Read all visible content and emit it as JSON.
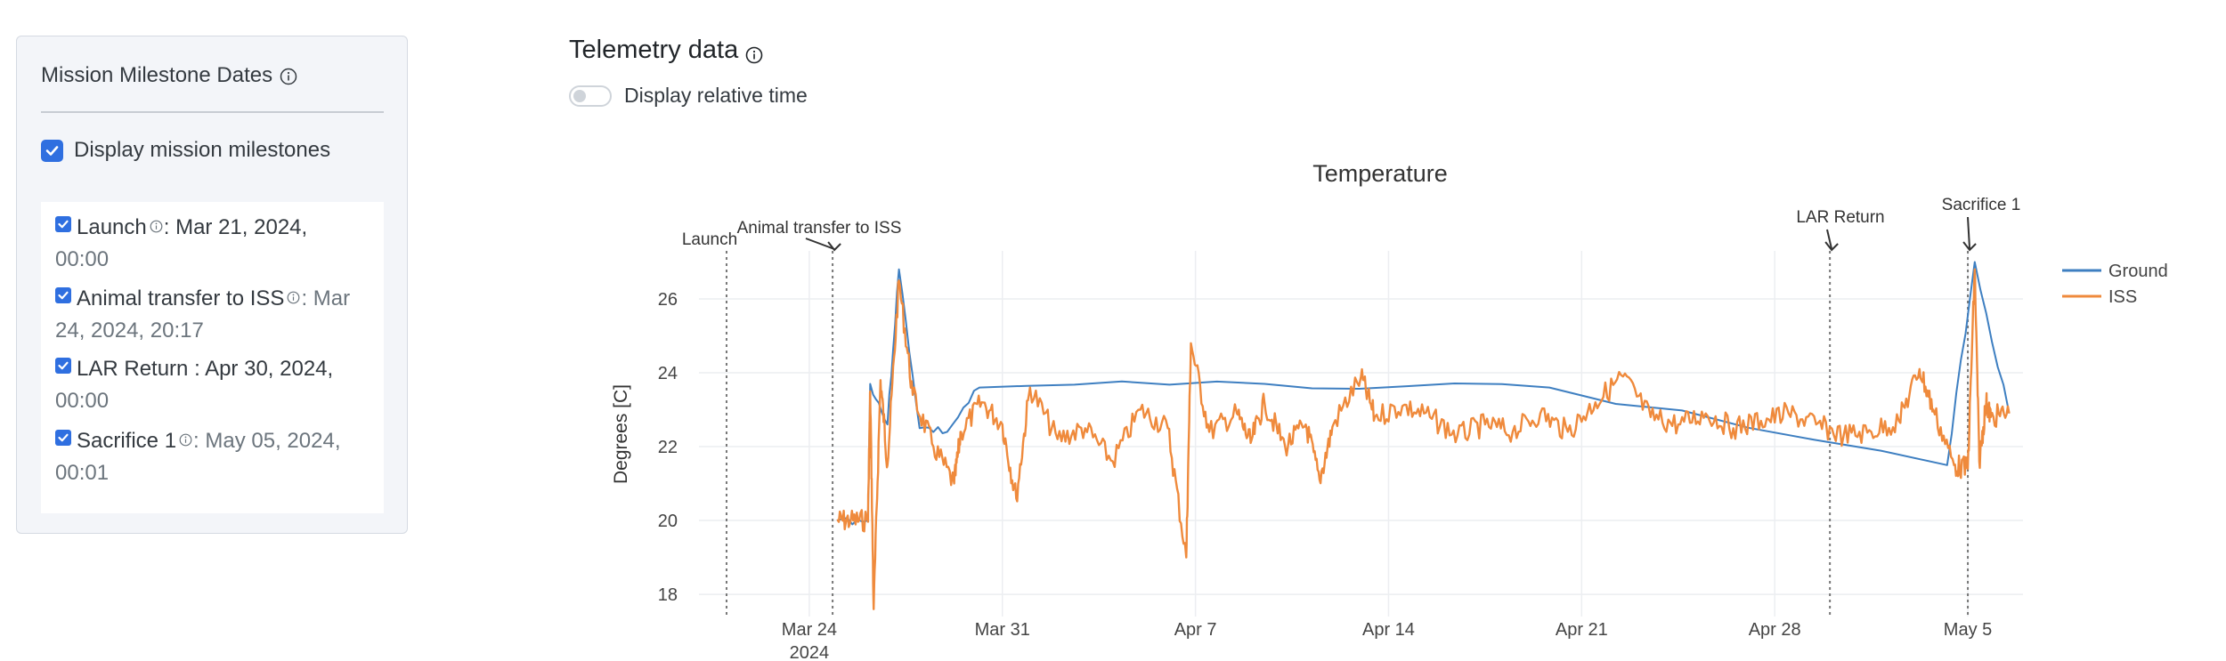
{
  "milestones_panel": {
    "title": "Mission Milestone Dates",
    "display_toggle_label": "Display mission milestones",
    "display_toggle_checked": true,
    "items": [
      {
        "name": "Launch",
        "has_info": true,
        "date_line1": ": Mar 21, 2024,",
        "date_line2": "00:00",
        "checked": true
      },
      {
        "name": "Animal transfer to ISS",
        "has_info": true,
        "date_line1": ": Mar",
        "date_line2": "24, 2024, 20:17",
        "checked": true
      },
      {
        "name": "LAR Return",
        "has_info": false,
        "date_line1": ": Apr 30, 2024,",
        "date_line2": "00:00",
        "checked": true
      },
      {
        "name": "Sacrifice 1",
        "has_info": true,
        "date_line1": ": May 05, 2024,",
        "date_line2": "00:01",
        "checked": true
      }
    ]
  },
  "telemetry": {
    "title": "Telemetry data",
    "relative_time_label": "Display relative time",
    "relative_time_on": false
  },
  "colors": {
    "ground": "#3e7fc1",
    "iss": "#ef8a3c",
    "accent": "#2f6fe0"
  },
  "chart_data": {
    "type": "line",
    "title": "Temperature",
    "xlabel": "",
    "ylabel": "Degrees [C]",
    "xlim": [
      "2024-03-20",
      "2024-05-07"
    ],
    "ylim": [
      17.4,
      27.3
    ],
    "yticks": [
      18,
      20,
      22,
      24,
      26
    ],
    "xticks": [
      {
        "date": "2024-03-24",
        "label": "Mar 24",
        "sublabel": "2024"
      },
      {
        "date": "2024-03-31",
        "label": "Mar 31",
        "sublabel": ""
      },
      {
        "date": "2024-04-07",
        "label": "Apr 7",
        "sublabel": ""
      },
      {
        "date": "2024-04-14",
        "label": "Apr 14",
        "sublabel": ""
      },
      {
        "date": "2024-04-21",
        "label": "Apr 21",
        "sublabel": ""
      },
      {
        "date": "2024-04-28",
        "label": "Apr 28",
        "sublabel": ""
      },
      {
        "date": "2024-05-05",
        "label": "May 5",
        "sublabel": ""
      }
    ],
    "grid": true,
    "legend_position": "top-right",
    "milestone_lines": [
      {
        "label": "Launch",
        "date": "2024-03-21 00:00",
        "arrow": false
      },
      {
        "label": "Animal transfer to ISS",
        "date": "2024-03-24 20:17",
        "arrow": true
      },
      {
        "label": "LAR Return",
        "date": "2024-04-30 00:00",
        "arrow": true
      },
      {
        "label": "Sacrifice 1",
        "date": "2024-05-05 00:01",
        "arrow": true
      }
    ],
    "series": [
      {
        "name": "Ground",
        "color_key": "ground",
        "points": [
          [
            "2024-03-25 00:00",
            20.0
          ],
          [
            "2024-03-26 03:00",
            20.0
          ],
          [
            "2024-03-26 05:00",
            23.7
          ],
          [
            "2024-03-26 20:00",
            22.6
          ],
          [
            "2024-03-27 06:00",
            26.8
          ],
          [
            "2024-03-28 00:00",
            22.5
          ],
          [
            "2024-03-29 00:00",
            22.4
          ],
          [
            "2024-03-30 04:00",
            23.6
          ],
          [
            "2024-04-09 12:00",
            23.7
          ],
          [
            "2024-04-19 20:00",
            23.6
          ],
          [
            "2024-05-04 06:00",
            21.5
          ],
          [
            "2024-05-05 06:00",
            27.0
          ],
          [
            "2024-05-06 12:00",
            22.9
          ]
        ]
      },
      {
        "name": "ISS",
        "color_key": "iss",
        "points": [
          [
            "2024-03-25 00:00",
            20.0
          ],
          [
            "2024-03-25 12:00",
            20.0
          ],
          [
            "2024-03-26 03:00",
            20.0
          ],
          [
            "2024-03-26 05:00",
            23.5
          ],
          [
            "2024-03-26 08:00",
            17.6
          ],
          [
            "2024-03-26 14:00",
            23.8
          ],
          [
            "2024-03-26 20:00",
            21.5
          ],
          [
            "2024-03-27 06:00",
            26.5
          ],
          [
            "2024-03-27 18:00",
            23.4
          ],
          [
            "2024-03-28 12:00",
            22.0
          ],
          [
            "2024-03-29 06:00",
            21.0
          ],
          [
            "2024-03-29 12:00",
            22.4
          ],
          [
            "2024-03-30 06:00",
            23.2
          ],
          [
            "2024-03-31 00:00",
            22.6
          ],
          [
            "2024-03-31 12:00",
            20.6
          ],
          [
            "2024-04-01 00:00",
            23.6
          ],
          [
            "2024-04-02 00:00",
            22.2
          ],
          [
            "2024-04-03 00:00",
            22.5
          ],
          [
            "2024-04-04 00:00",
            21.6
          ],
          [
            "2024-04-05 00:00",
            23.0
          ],
          [
            "2024-04-06 00:00",
            22.5
          ],
          [
            "2024-04-06 16:00",
            19.0
          ],
          [
            "2024-04-06 20:00",
            24.8
          ],
          [
            "2024-04-07 12:00",
            22.4
          ],
          [
            "2024-04-08 12:00",
            22.9
          ],
          [
            "2024-04-09 00:00",
            22.1
          ],
          [
            "2024-04-09 12:00",
            23.2
          ],
          [
            "2024-04-10 06:00",
            22.0
          ],
          [
            "2024-04-11 00:00",
            22.6
          ],
          [
            "2024-04-11 12:00",
            21.1
          ],
          [
            "2024-04-12 00:00",
            22.6
          ],
          [
            "2024-04-13 00:00",
            23.9
          ],
          [
            "2024-04-13 12:00",
            22.8
          ],
          [
            "2024-04-14 12:00",
            23.1
          ],
          [
            "2024-04-15 12:00",
            22.8
          ],
          [
            "2024-04-16 12:00",
            22.3
          ],
          [
            "2024-04-17 12:00",
            22.6
          ],
          [
            "2024-04-18 12:00",
            22.4
          ],
          [
            "2024-04-19 12:00",
            22.9
          ],
          [
            "2024-04-20 12:00",
            22.4
          ],
          [
            "2024-04-21 12:00",
            23.2
          ],
          [
            "2024-04-22 12:00",
            23.9
          ],
          [
            "2024-04-23 12:00",
            22.8
          ],
          [
            "2024-04-24 12:00",
            22.6
          ],
          [
            "2024-04-25 12:00",
            22.9
          ],
          [
            "2024-04-26 12:00",
            22.5
          ],
          [
            "2024-04-27 12:00",
            22.7
          ],
          [
            "2024-04-28 12:00",
            22.9
          ],
          [
            "2024-04-29 12:00",
            22.6
          ],
          [
            "2024-04-30 12:00",
            22.3
          ],
          [
            "2024-05-01 12:00",
            22.4
          ],
          [
            "2024-05-02 12:00",
            22.7
          ],
          [
            "2024-05-03 06:00",
            24.1
          ],
          [
            "2024-05-03 18:00",
            23.0
          ],
          [
            "2024-05-04 12:00",
            21.5
          ],
          [
            "2024-05-05 00:00",
            21.4
          ],
          [
            "2024-05-05 06:00",
            26.8
          ],
          [
            "2024-05-05 10:00",
            21.6
          ],
          [
            "2024-05-05 16:00",
            23.2
          ],
          [
            "2024-05-05 20:00",
            22.8
          ],
          [
            "2024-05-06 12:00",
            22.9
          ]
        ]
      }
    ]
  }
}
